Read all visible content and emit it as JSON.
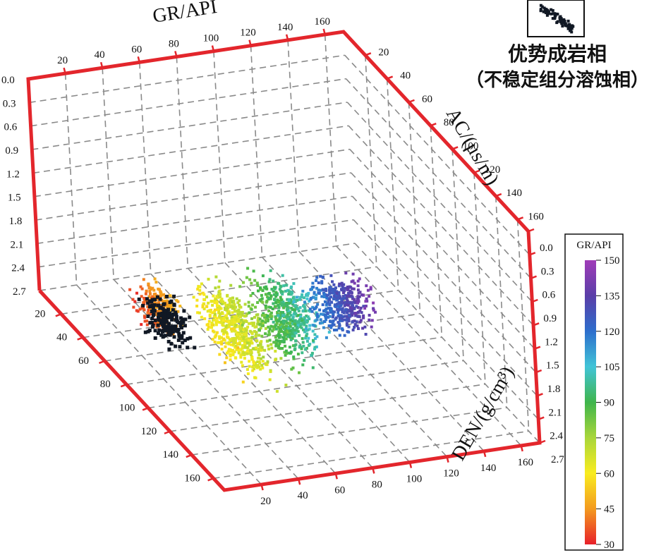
{
  "chart_data": {
    "type": "scatter",
    "projection": "3d",
    "axes": {
      "gr": {
        "label": "GR/API",
        "ticks": [
          "20",
          "40",
          "60",
          "80",
          "100",
          "120",
          "140",
          "160"
        ],
        "range": [
          0,
          170
        ]
      },
      "ac": {
        "label": "AC/(μs/m)",
        "ticks": [
          "20",
          "40",
          "60",
          "80",
          "100",
          "120",
          "140",
          "160"
        ],
        "range": [
          0,
          170
        ]
      },
      "den": {
        "label": "DEN/(g/cm³)",
        "ticks": [
          "0.0",
          "0.3",
          "0.6",
          "0.9",
          "1.2",
          "1.5",
          "1.8",
          "2.1",
          "2.4",
          "2.7"
        ],
        "range": [
          0.0,
          2.7
        ]
      }
    },
    "grid": true,
    "color_by": "GR/API",
    "colorbar": {
      "title": "GR/API",
      "ticks": [
        "150",
        "135",
        "120",
        "105",
        "90",
        "75",
        "60",
        "45",
        "30"
      ],
      "range": [
        30,
        150
      ],
      "colors": [
        "#e8202a",
        "#f39a1f",
        "#f9ec1f",
        "#a9d63a",
        "#3fb54c",
        "#41c4d7",
        "#2d6ecc",
        "#5a3ea8",
        "#a03cb8"
      ]
    },
    "highlight_series": {
      "name": "优势成岩相",
      "name_sub": "（不稳定组分溶蚀相）",
      "color": "#111824",
      "gr_range": [
        28,
        52
      ],
      "ac_range": [
        30,
        70
      ],
      "den_range": [
        2.3,
        2.7
      ]
    },
    "clusters": [
      {
        "gr": [
          30,
          55
        ],
        "ac": [
          20,
          55
        ],
        "den": [
          2.3,
          2.7
        ],
        "count": 220
      },
      {
        "gr": [
          50,
          80
        ],
        "ac": [
          30,
          110
        ],
        "den": [
          2.1,
          2.7
        ],
        "count": 520
      },
      {
        "gr": [
          75,
          110
        ],
        "ac": [
          40,
          100
        ],
        "den": [
          2.0,
          2.7
        ],
        "count": 480
      },
      {
        "gr": [
          105,
          150
        ],
        "ac": [
          40,
          80
        ],
        "den": [
          2.2,
          2.7
        ],
        "count": 380
      }
    ]
  },
  "legend": {
    "line1": "优势成岩相",
    "line2": "（不稳定组分溶蚀相）"
  }
}
